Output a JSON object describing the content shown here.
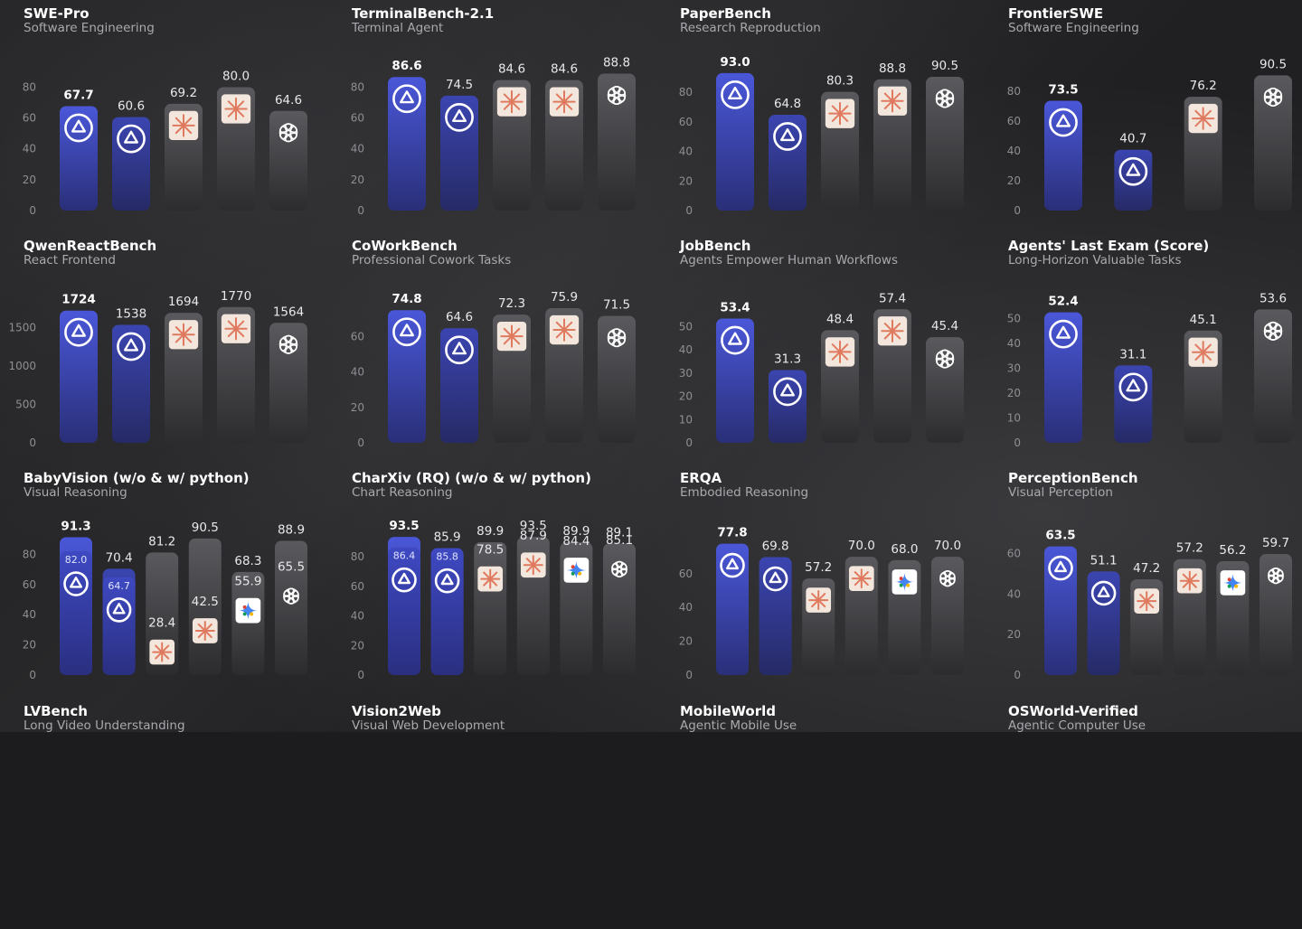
{
  "palette": {
    "background": "#202022",
    "accent_blue_top": "#4a57d8",
    "accent_blue_bottom": "#2a2f78",
    "gray_top": "#5a5a5e",
    "gray_bottom": "#2c2c2f",
    "claude_icon": "#e07a5f",
    "gemini_icon": [
      "#4285f4",
      "#f4b400",
      "#0f9d58",
      "#db4437"
    ]
  },
  "chart_data": [
    {
      "type": "bar",
      "title": "SWE-Pro",
      "subtitle": "Software Engineering",
      "yticks": [
        0,
        20,
        40,
        60,
        80
      ],
      "ylim": [
        0,
        92
      ],
      "grid": false,
      "values": [
        67.7,
        60.6,
        69.2,
        80.0
      ],
      "labels": [
        "67.7",
        "60.6",
        "69.2",
        "80.0"
      ],
      "values2": [
        64.6
      ],
      "labels2": [
        "64.6"
      ],
      "bars": [
        {
          "value": 67.7,
          "label": "67.7",
          "icon": "qwen-logo-icon",
          "style": "accent",
          "bold": true
        },
        {
          "value": 60.6,
          "label": "60.6",
          "icon": "qwen-logo-icon",
          "style": "accent2"
        },
        {
          "value": 69.2,
          "label": "69.2",
          "icon": "claude-logo-icon",
          "style": "gray"
        },
        {
          "value": 80.0,
          "label": "80.0",
          "icon": "claude-logo-icon",
          "style": "gray"
        },
        {
          "value": 64.6,
          "label": "64.6",
          "icon": "openai-logo-icon",
          "style": "gray"
        }
      ]
    },
    {
      "type": "bar",
      "title": "TerminalBench-2.1",
      "subtitle": "Terminal Agent",
      "yticks": [
        0,
        20,
        40,
        60,
        80
      ],
      "ylim": [
        0,
        92
      ],
      "grid": false,
      "bars": [
        {
          "value": 86.6,
          "label": "86.6",
          "icon": "qwen-logo-icon",
          "style": "accent",
          "bold": true
        },
        {
          "value": 74.5,
          "label": "74.5",
          "icon": "qwen-logo-icon",
          "style": "accent2"
        },
        {
          "value": 84.6,
          "label": "84.6",
          "icon": "claude-logo-icon",
          "style": "gray"
        },
        {
          "value": 84.6,
          "label": "84.6",
          "icon": "claude-logo-icon",
          "style": "gray"
        },
        {
          "value": 88.8,
          "label": "88.8",
          "icon": "openai-logo-icon",
          "style": "gray"
        }
      ]
    },
    {
      "type": "bar",
      "title": "PaperBench",
      "subtitle": "Research Reproduction",
      "yticks": [
        0,
        20,
        40,
        60,
        80
      ],
      "ylim": [
        0,
        96
      ],
      "grid": false,
      "bars": [
        {
          "value": 93.0,
          "label": "93.0",
          "icon": "qwen-logo-icon",
          "style": "accent",
          "bold": true
        },
        {
          "value": 64.8,
          "label": "64.8",
          "icon": "qwen-logo-icon",
          "style": "accent2"
        },
        {
          "value": 80.3,
          "label": "80.3",
          "icon": "claude-logo-icon",
          "style": "gray"
        },
        {
          "value": 88.8,
          "label": "88.8",
          "icon": "claude-logo-icon",
          "style": "gray"
        },
        {
          "value": 90.5,
          "label": "90.5",
          "icon": "openai-logo-icon",
          "style": "gray"
        }
      ]
    },
    {
      "type": "bar",
      "title": "FrontierSWE",
      "subtitle": "Software Engineering",
      "yticks": [
        0,
        20,
        40,
        60,
        80
      ],
      "ylim": [
        0,
        95
      ],
      "grid": false,
      "bars": [
        {
          "value": 73.5,
          "label": "73.5",
          "icon": "qwen-logo-icon",
          "style": "accent",
          "bold": true
        },
        {
          "value": 40.7,
          "label": "40.7",
          "icon": "qwen-logo-icon",
          "style": "accent2"
        },
        {
          "value": 76.2,
          "label": "76.2",
          "icon": "claude-logo-icon",
          "style": "gray"
        },
        {
          "value": 90.5,
          "label": "90.5",
          "icon": "openai-logo-icon",
          "style": "gray"
        }
      ]
    },
    {
      "type": "bar",
      "title": "QwenReactBench",
      "subtitle": "React Frontend",
      "yticks": [
        0,
        500,
        1000,
        1500
      ],
      "ylim": [
        0,
        1850
      ],
      "grid": false,
      "bars": [
        {
          "value": 1724,
          "label": "1724",
          "icon": "qwen-logo-icon",
          "style": "accent",
          "bold": true
        },
        {
          "value": 1538,
          "label": "1538",
          "icon": "qwen-logo-icon",
          "style": "accent2"
        },
        {
          "value": 1694,
          "label": "1694",
          "icon": "claude-logo-icon",
          "style": "gray"
        },
        {
          "value": 1770,
          "label": "1770",
          "icon": "claude-logo-icon",
          "style": "gray"
        },
        {
          "value": 1564,
          "label": "1564",
          "icon": "openai-logo-icon",
          "style": "gray"
        }
      ]
    },
    {
      "type": "bar",
      "title": "CoWorkBench",
      "subtitle": "Professional Cowork Tasks",
      "yticks": [
        0,
        20,
        40,
        60
      ],
      "ylim": [
        0,
        80
      ],
      "grid": false,
      "bars": [
        {
          "value": 74.8,
          "label": "74.8",
          "icon": "qwen-logo-icon",
          "style": "accent",
          "bold": true
        },
        {
          "value": 64.6,
          "label": "64.6",
          "icon": "qwen-logo-icon",
          "style": "accent2"
        },
        {
          "value": 72.3,
          "label": "72.3",
          "icon": "claude-logo-icon",
          "style": "gray"
        },
        {
          "value": 75.9,
          "label": "75.9",
          "icon": "claude-logo-icon",
          "style": "gray"
        },
        {
          "value": 71.5,
          "label": "71.5",
          "icon": "openai-logo-icon",
          "style": "gray"
        }
      ]
    },
    {
      "type": "bar",
      "title": "JobBench",
      "subtitle": "Agents Empower Human Workflows",
      "yticks": [
        0,
        10,
        20,
        30,
        40,
        50
      ],
      "ylim": [
        0,
        61
      ],
      "grid": false,
      "bars": [
        {
          "value": 53.4,
          "label": "53.4",
          "icon": "qwen-logo-icon",
          "style": "accent",
          "bold": true
        },
        {
          "value": 31.3,
          "label": "31.3",
          "icon": "qwen-logo-icon",
          "style": "accent2"
        },
        {
          "value": 48.4,
          "label": "48.4",
          "icon": "claude-logo-icon",
          "style": "gray"
        },
        {
          "value": 57.4,
          "label": "57.4",
          "icon": "claude-logo-icon",
          "style": "gray"
        },
        {
          "value": 45.4,
          "label": "45.4",
          "icon": "openai-logo-icon",
          "style": "gray"
        }
      ]
    },
    {
      "type": "bar",
      "title": "Agents' Last Exam (Score)",
      "subtitle": "Long-Horizon Valuable Tasks",
      "yticks": [
        0,
        10,
        20,
        30,
        40,
        50
      ],
      "ylim": [
        0,
        57
      ],
      "grid": false,
      "bars": [
        {
          "value": 52.4,
          "label": "52.4",
          "icon": "qwen-logo-icon",
          "style": "accent",
          "bold": true
        },
        {
          "value": 31.1,
          "label": "31.1",
          "icon": "qwen-logo-icon",
          "style": "accent2"
        },
        {
          "value": 45.1,
          "label": "45.1",
          "icon": "claude-logo-icon",
          "style": "gray"
        },
        {
          "value": 53.6,
          "label": "53.6",
          "icon": "openai-logo-icon",
          "style": "gray"
        }
      ]
    },
    {
      "type": "bar",
      "title": "BabyVision (w/o & w/ python)",
      "subtitle": "Visual Reasoning",
      "yticks": [
        0,
        20,
        40,
        60,
        80
      ],
      "ylim": [
        0,
        94
      ],
      "grid": false,
      "bars": [
        {
          "value": 91.3,
          "label": "91.3",
          "inner": 82.0,
          "inner_label": "82.0",
          "icon": "qwen-logo-icon",
          "style": "accent",
          "bold": true
        },
        {
          "value": 70.4,
          "label": "70.4",
          "inner": 64.7,
          "inner_label": "64.7",
          "icon": "qwen-logo-icon",
          "style": "accent2"
        },
        {
          "value": 81.2,
          "label": "81.2",
          "inner": 28.4,
          "inner_label": "28.4",
          "icon": "claude-logo-icon",
          "style": "gray"
        },
        {
          "value": 90.5,
          "label": "90.5",
          "inner": 42.5,
          "inner_label": "42.5",
          "icon": "claude-logo-icon",
          "style": "gray"
        },
        {
          "value": 68.3,
          "label": "68.3",
          "inner": 55.9,
          "inner_label": "55.9",
          "icon": "gemini-logo-icon",
          "style": "gray"
        },
        {
          "value": 88.9,
          "label": "88.9",
          "inner": 65.5,
          "inner_label": "65.5",
          "icon": "openai-logo-icon",
          "style": "gray"
        }
      ]
    },
    {
      "type": "bar",
      "title": "CharXiv (RQ) (w/o & w/ python)",
      "subtitle": "Chart Reasoning",
      "yticks": [
        0,
        20,
        40,
        60,
        80
      ],
      "ylim": [
        0,
        96
      ],
      "grid": false,
      "bars": [
        {
          "value": 93.5,
          "label": "93.5",
          "inner": 86.4,
          "inner_label": "86.4",
          "icon": "qwen-logo-icon",
          "style": "accent",
          "bold": true
        },
        {
          "value": 85.9,
          "label": "85.9",
          "inner": 85.8,
          "inner_label": "85.8",
          "icon": "qwen-logo-icon",
          "style": "accent2"
        },
        {
          "value": 89.9,
          "label": "89.9",
          "inner": 78.5,
          "inner_label": "78.5",
          "icon": "claude-logo-icon",
          "style": "gray"
        },
        {
          "value": 93.5,
          "label": "93.5",
          "inner": 87.9,
          "inner_label": "87.9",
          "icon": "claude-logo-icon",
          "style": "gray"
        },
        {
          "value": 89.9,
          "label": "89.9",
          "inner": 84.4,
          "inner_label": "84.4",
          "icon": "gemini-logo-icon",
          "style": "gray"
        },
        {
          "value": 89.1,
          "label": "89.1",
          "inner": 85.1,
          "inner_label": "85.1",
          "icon": "openai-logo-icon",
          "style": "gray"
        }
      ]
    },
    {
      "type": "bar",
      "title": "ERQA",
      "subtitle": "Embodied Reasoning",
      "yticks": [
        0,
        20,
        40,
        60
      ],
      "ylim": [
        0,
        84
      ],
      "grid": false,
      "bars": [
        {
          "value": 77.8,
          "label": "77.8",
          "icon": "qwen-logo-icon",
          "style": "accent",
          "bold": true
        },
        {
          "value": 69.8,
          "label": "69.8",
          "icon": "qwen-logo-icon",
          "style": "accent2"
        },
        {
          "value": 57.2,
          "label": "57.2",
          "icon": "claude-logo-icon",
          "style": "gray"
        },
        {
          "value": 70.0,
          "label": "70.0",
          "icon": "claude-logo-icon",
          "style": "gray"
        },
        {
          "value": 68.0,
          "label": "68.0",
          "icon": "gemini-logo-icon",
          "style": "gray"
        },
        {
          "value": 70.0,
          "label": "70.0",
          "icon": "openai-logo-icon",
          "style": "gray"
        }
      ]
    },
    {
      "type": "bar",
      "title": "PerceptionBench",
      "subtitle": "Visual Perception",
      "yticks": [
        0,
        20,
        40,
        60
      ],
      "ylim": [
        0,
        70
      ],
      "grid": false,
      "bars": [
        {
          "value": 63.5,
          "label": "63.5",
          "icon": "qwen-logo-icon",
          "style": "accent",
          "bold": true
        },
        {
          "value": 51.1,
          "label": "51.1",
          "icon": "qwen-logo-icon",
          "style": "accent2"
        },
        {
          "value": 47.2,
          "label": "47.2",
          "icon": "claude-logo-icon",
          "style": "gray"
        },
        {
          "value": 57.2,
          "label": "57.2",
          "icon": "claude-logo-icon",
          "style": "gray"
        },
        {
          "value": 56.2,
          "label": "56.2",
          "icon": "gemini-logo-icon",
          "style": "gray"
        },
        {
          "value": 59.7,
          "label": "59.7",
          "icon": "openai-logo-icon",
          "style": "gray"
        }
      ]
    },
    {
      "type": "bar",
      "title": "LVBench",
      "subtitle": "Long Video Understanding",
      "bars": []
    },
    {
      "type": "bar",
      "title": "Vision2Web",
      "subtitle": "Visual Web Development",
      "bars": []
    },
    {
      "type": "bar",
      "title": "MobileWorld",
      "subtitle": "Agentic Mobile Use",
      "bars": []
    },
    {
      "type": "bar",
      "title": "OSWorld-Verified",
      "subtitle": "Agentic Computer Use",
      "bars": []
    }
  ]
}
